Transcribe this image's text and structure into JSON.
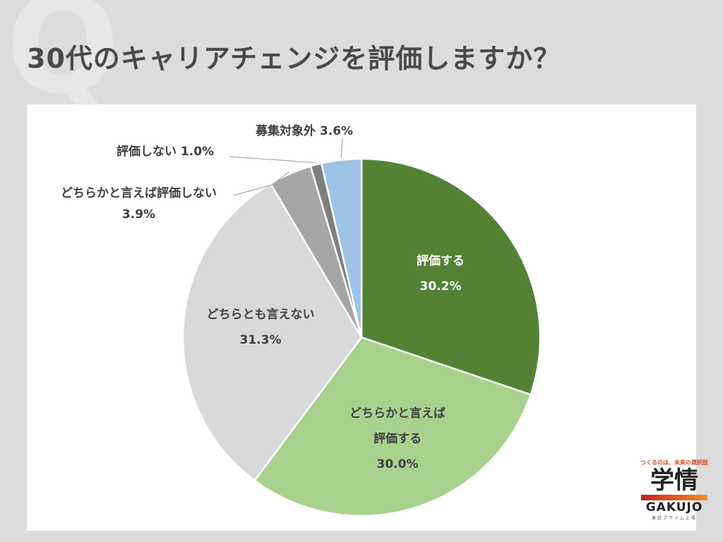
{
  "header": {
    "watermark": "Q",
    "title": "30代のキャリアチェンジを評価しますか？"
  },
  "chart_data": {
    "type": "pie",
    "start": "top",
    "direction": "clockwise",
    "categories": [
      "評価する",
      "どちらかと言えば評価する",
      "どちらとも言えない",
      "どちらかと言えば評価しない",
      "評価しない",
      "募集対象外"
    ],
    "values": [
      30.2,
      30.0,
      31.3,
      3.9,
      1.0,
      3.6
    ],
    "value_labels": [
      "30.2%",
      "30.0%",
      "31.3%",
      "3.9%",
      "1.0%",
      "3.6%"
    ],
    "colors": [
      "#548235",
      "#A9D18E",
      "#D9D9D9",
      "#A6A6A6",
      "#7F7F7F",
      "#9DC3E6"
    ],
    "label_lines": [
      [
        "評価する"
      ],
      [
        "どちらかと言えば",
        "評価する"
      ],
      [
        "どちらとも言えない"
      ],
      [
        "どちらかと言えば評価しない"
      ],
      [
        "評価しない"
      ],
      [
        "募集対象外"
      ]
    ]
  },
  "logo": {
    "tagline": "つくるのは、未来の選択肢",
    "kanji": "学情",
    "name": "GAKUJO",
    "sub": "東証プライム上場"
  }
}
